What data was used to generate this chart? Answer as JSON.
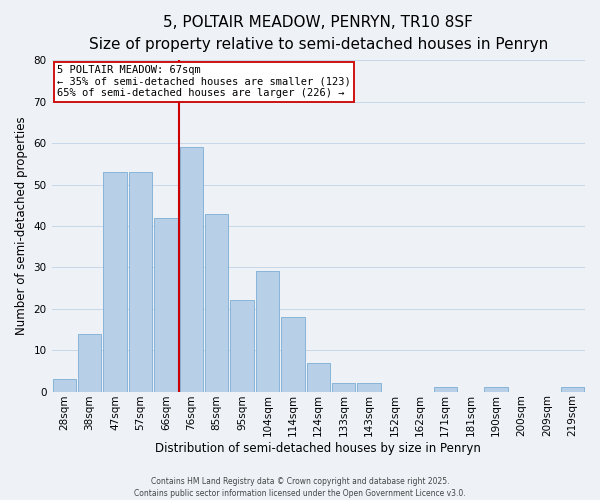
{
  "title": "5, POLTAIR MEADOW, PENRYN, TR10 8SF",
  "subtitle": "Size of property relative to semi-detached houses in Penryn",
  "xlabel": "Distribution of semi-detached houses by size in Penryn",
  "ylabel": "Number of semi-detached properties",
  "bar_labels": [
    "28sqm",
    "38sqm",
    "47sqm",
    "57sqm",
    "66sqm",
    "76sqm",
    "85sqm",
    "95sqm",
    "104sqm",
    "114sqm",
    "124sqm",
    "133sqm",
    "143sqm",
    "152sqm",
    "162sqm",
    "171sqm",
    "181sqm",
    "190sqm",
    "200sqm",
    "209sqm",
    "219sqm"
  ],
  "bar_values": [
    3,
    14,
    53,
    53,
    42,
    59,
    43,
    22,
    29,
    18,
    7,
    2,
    2,
    0,
    0,
    1,
    0,
    1,
    0,
    0,
    1
  ],
  "bar_color": "#b8cfe8",
  "bar_edge_color": "#7aadd4",
  "vline_color": "#cc0000",
  "ylim": [
    0,
    80
  ],
  "yticks": [
    0,
    10,
    20,
    30,
    40,
    50,
    60,
    70,
    80
  ],
  "annotation_line1": "5 POLTAIR MEADOW: 67sqm",
  "annotation_line2": "← 35% of semi-detached houses are smaller (123)",
  "annotation_line3": "65% of semi-detached houses are larger (226) →",
  "grid_color": "#c8d8e8",
  "background_color": "#eef2f7",
  "footer_text": "Contains HM Land Registry data © Crown copyright and database right 2025.\nContains public sector information licensed under the Open Government Licence v3.0.",
  "title_fontsize": 11,
  "subtitle_fontsize": 9,
  "label_fontsize": 8.5,
  "tick_fontsize": 7.5,
  "footer_fontsize": 5.5,
  "annot_fontsize": 7.5
}
